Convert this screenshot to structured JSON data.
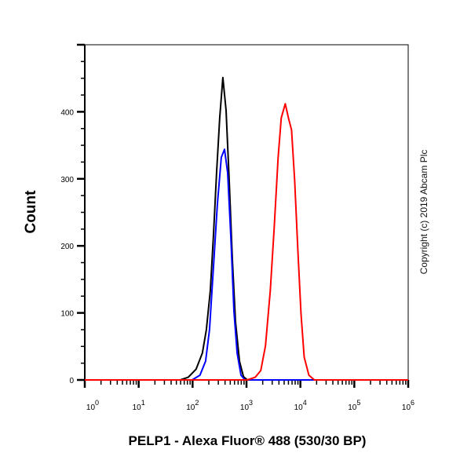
{
  "chart_data": {
    "type": "line",
    "title": "",
    "xlabel": "PELP1 - Alexa Fluor® 488 (530/30 BP)",
    "ylabel": "Count",
    "xscale": "log",
    "xlim": [
      1,
      1000000
    ],
    "ylim": [
      0,
      500
    ],
    "x_tick_labels": [
      {
        "base": "10",
        "exp": "0",
        "value": 1
      },
      {
        "base": "10",
        "exp": "1",
        "value": 10
      },
      {
        "base": "10",
        "exp": "2",
        "value": 100
      },
      {
        "base": "10",
        "exp": "3",
        "value": 1000
      },
      {
        "base": "10",
        "exp": "4",
        "value": 10000
      },
      {
        "base": "10",
        "exp": "5",
        "value": 100000
      },
      {
        "base": "10",
        "exp": "6",
        "value": 1000000
      }
    ],
    "y_ticks": [
      "0",
      "100",
      "200",
      "300",
      "400"
    ],
    "grid": false,
    "annotation": "Copyright (c) 2019 Abcam Plc",
    "series": [
      {
        "color": "#000000",
        "x": [
          1,
          59,
          83,
          116,
          152,
          180,
          213,
          244,
          279,
          319,
          365,
          418,
          478,
          547,
          626,
          741,
          877,
          1038,
          1000000
        ],
        "y": [
          0,
          0,
          4,
          16,
          40,
          75,
          133,
          215,
          309,
          391,
          451,
          402,
          297,
          180,
          87,
          28,
          5,
          0,
          0
        ]
      },
      {
        "color": "#0000ff",
        "x": [
          1,
          98,
          137,
          174,
          206,
          244,
          288,
          341,
          391,
          447,
          512,
          585,
          670,
          792,
          937,
          1000000
        ],
        "y": [
          0,
          0,
          7,
          28,
          75,
          168,
          262,
          332,
          344,
          309,
          215,
          103,
          40,
          7,
          0,
          0
        ]
      },
      {
        "color": "#ff0000",
        "x": [
          1,
          1038,
          1452,
          1841,
          2254,
          2760,
          3266,
          3865,
          4424,
          5236,
          5985,
          6856,
          7850,
          8982,
          10280,
          11750,
          14390,
          18200,
          1000000
        ],
        "y": [
          0,
          0,
          4,
          14,
          51,
          133,
          227,
          332,
          391,
          412,
          391,
          373,
          297,
          192,
          98,
          34,
          7,
          0,
          0
        ]
      }
    ]
  }
}
